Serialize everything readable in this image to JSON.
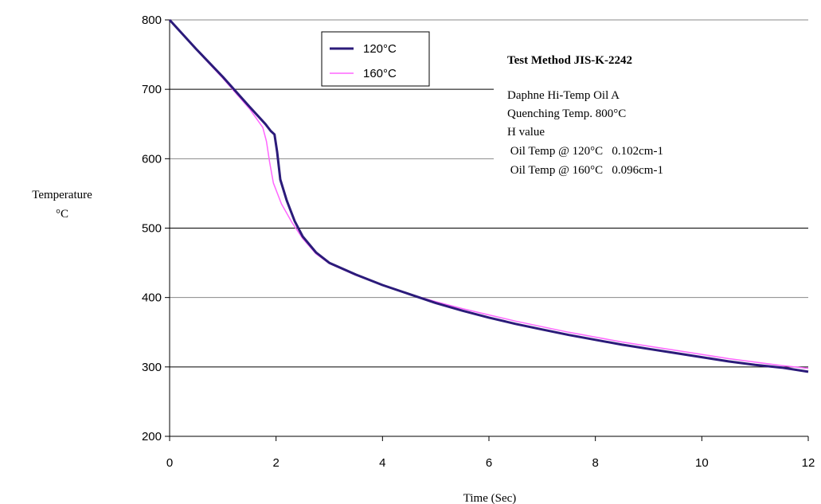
{
  "chart_data": {
    "type": "line",
    "xlabel": "Time (Sec)",
    "ylabel_lines": [
      "Temperature",
      "°C"
    ],
    "xlim": [
      0,
      12
    ],
    "ylim": [
      200,
      800
    ],
    "x_ticks": [
      0,
      2,
      4,
      6,
      8,
      10,
      12
    ],
    "y_ticks": [
      200,
      300,
      400,
      500,
      600,
      700,
      800
    ],
    "grid": "horizontal",
    "legend_position": "top-left",
    "series": [
      {
        "name": "120°C",
        "color": "#2b1b7a",
        "points": [
          [
            0,
            800
          ],
          [
            0.5,
            758
          ],
          [
            1,
            718
          ],
          [
            1.5,
            675
          ],
          [
            1.8,
            650
          ],
          [
            1.9,
            640
          ],
          [
            1.97,
            635
          ],
          [
            2.02,
            610
          ],
          [
            2.08,
            570
          ],
          [
            2.2,
            540
          ],
          [
            2.35,
            510
          ],
          [
            2.5,
            488
          ],
          [
            2.75,
            465
          ],
          [
            3,
            450
          ],
          [
            3.5,
            433
          ],
          [
            4,
            418
          ],
          [
            4.5,
            405
          ],
          [
            5,
            392
          ],
          [
            5.5,
            381
          ],
          [
            6,
            371
          ],
          [
            6.5,
            362
          ],
          [
            7,
            354
          ],
          [
            7.5,
            346
          ],
          [
            8,
            339
          ],
          [
            8.5,
            332
          ],
          [
            9,
            326
          ],
          [
            9.5,
            320
          ],
          [
            10,
            314
          ],
          [
            10.5,
            308
          ],
          [
            11,
            303
          ],
          [
            11.5,
            299
          ],
          [
            12,
            293
          ]
        ]
      },
      {
        "name": "160°C",
        "color": "#ff66ff",
        "points": [
          [
            0,
            800
          ],
          [
            0.5,
            757
          ],
          [
            1,
            716
          ],
          [
            1.5,
            672
          ],
          [
            1.75,
            645
          ],
          [
            1.82,
            625
          ],
          [
            1.88,
            595
          ],
          [
            1.95,
            565
          ],
          [
            2.1,
            535
          ],
          [
            2.3,
            508
          ],
          [
            2.5,
            485
          ],
          [
            2.75,
            463
          ],
          [
            3,
            449
          ],
          [
            3.5,
            432
          ],
          [
            4,
            418
          ],
          [
            4.5,
            405
          ],
          [
            5,
            394
          ],
          [
            5.5,
            384
          ],
          [
            6,
            375
          ],
          [
            6.5,
            366
          ],
          [
            7,
            358
          ],
          [
            7.5,
            350
          ],
          [
            8,
            343
          ],
          [
            8.5,
            336
          ],
          [
            9,
            330
          ],
          [
            9.5,
            324
          ],
          [
            10,
            318
          ],
          [
            10.5,
            312
          ],
          [
            11,
            307
          ],
          [
            11.5,
            302
          ],
          [
            12,
            298
          ]
        ]
      }
    ],
    "annotation": {
      "title": "Test Method JIS-K-2242",
      "lines": [
        "Daphne Hi-Temp Oil A",
        "Quenching Temp. 800°C",
        "H value",
        " Oil Temp @ 120°C   0.102cm-1",
        " Oil Temp @ 160°C   0.096cm-1"
      ]
    }
  }
}
